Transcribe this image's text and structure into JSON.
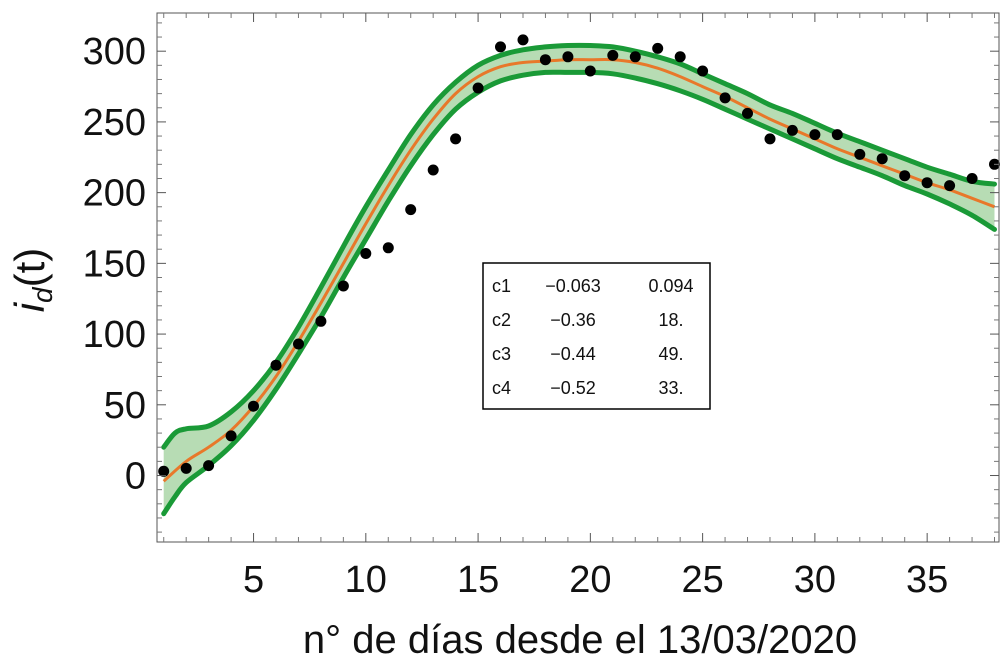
{
  "chart_data": {
    "type": "line",
    "xlabel": "n° de días desde el 13/03/2020",
    "ylabel": {
      "main": "i",
      "subscript": "d",
      "suffix": "(t)"
    },
    "xlim": [
      0.7,
      38.2
    ],
    "ylim": [
      -47,
      327
    ],
    "xticks": [
      5,
      10,
      15,
      20,
      25,
      30,
      35
    ],
    "yticks": [
      0,
      50,
      100,
      150,
      200,
      250,
      300
    ],
    "grid": false,
    "colors": {
      "fit": "#e8782a",
      "band_edge": "#1a9a37",
      "band_fill": "#b7dcb4",
      "points": "#000000"
    },
    "observed": {
      "x": [
        1,
        2,
        3,
        4,
        5,
        6,
        7,
        8,
        9,
        10,
        11,
        12,
        13,
        14,
        15,
        16,
        17,
        18,
        19,
        20,
        21,
        22,
        23,
        24,
        25,
        26,
        27,
        28,
        29,
        30,
        31,
        32,
        33,
        34,
        35,
        36,
        37,
        38
      ],
      "y": [
        3,
        5,
        7,
        28,
        49,
        78,
        93,
        109,
        134,
        157,
        161,
        188,
        216,
        238,
        274,
        303,
        308,
        294,
        296,
        286,
        297,
        296,
        302,
        296,
        286,
        267,
        256,
        238,
        244,
        241,
        241,
        227,
        224,
        212,
        207,
        205,
        210,
        220
      ]
    },
    "fit": {
      "x": [
        1,
        2,
        3,
        4,
        5,
        6,
        7,
        8,
        9,
        10,
        11,
        12,
        13,
        14,
        15,
        16,
        17,
        18,
        19,
        20,
        21,
        22,
        23,
        24,
        25,
        26,
        27,
        28,
        29,
        30,
        31,
        32,
        33,
        34,
        35,
        36,
        37,
        38
      ],
      "y": [
        -4,
        10,
        20,
        32,
        49,
        70,
        95,
        122,
        150,
        178,
        205,
        230,
        252,
        270,
        282,
        289,
        292,
        293,
        294,
        294,
        294,
        292,
        288,
        282,
        275,
        268,
        260,
        252,
        245,
        238,
        231,
        225,
        219,
        213,
        207,
        202,
        196,
        190
      ]
    },
    "band_upper": {
      "x": [
        1,
        1.5,
        2,
        3,
        4,
        5,
        6,
        7,
        8,
        9,
        10,
        11,
        12,
        13,
        14,
        15,
        16,
        17,
        18,
        19,
        20,
        21,
        22,
        23,
        24,
        25,
        26,
        27,
        28,
        29,
        30,
        31,
        32,
        33,
        34,
        35,
        36,
        37,
        38
      ],
      "y": [
        20,
        30,
        33,
        35,
        45,
        60,
        80,
        105,
        133,
        162,
        190,
        216,
        241,
        262,
        278,
        290,
        297,
        301,
        303,
        304,
        304,
        303,
        300,
        296,
        291,
        284,
        277,
        270,
        262,
        256,
        249,
        242,
        236,
        230,
        224,
        218,
        213,
        208,
        206
      ]
    },
    "band_lower": {
      "x": [
        1,
        1.5,
        2,
        3,
        4,
        5,
        6,
        7,
        8,
        9,
        10,
        11,
        12,
        13,
        14,
        15,
        16,
        17,
        18,
        19,
        20,
        21,
        22,
        23,
        24,
        25,
        26,
        27,
        28,
        29,
        30,
        31,
        32,
        33,
        34,
        35,
        36,
        37,
        38
      ],
      "y": [
        -27,
        -15,
        -5,
        7,
        21,
        39,
        61,
        86,
        112,
        140,
        167,
        194,
        219,
        241,
        259,
        271,
        279,
        283,
        285,
        285,
        285,
        284,
        281,
        277,
        272,
        266,
        259,
        252,
        245,
        238,
        231,
        224,
        218,
        212,
        205,
        199,
        192,
        184,
        174
      ]
    },
    "table": [
      [
        "c1",
        "−0.063",
        "0.094"
      ],
      [
        "c2",
        "−0.36",
        "18."
      ],
      [
        "c3",
        "−0.44",
        "49."
      ],
      [
        "c4",
        "−0.52",
        "33."
      ]
    ]
  }
}
